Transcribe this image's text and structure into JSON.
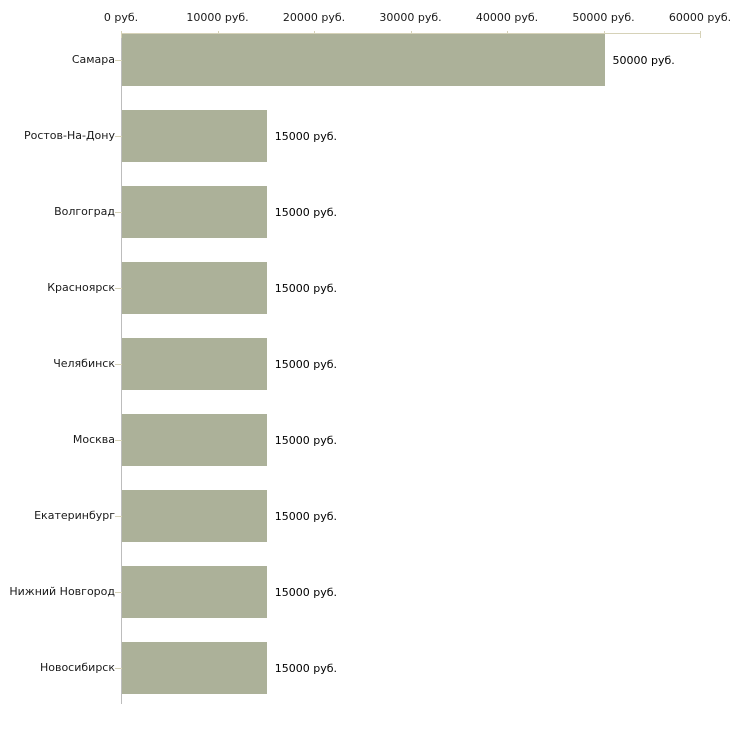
{
  "chart_data": {
    "type": "bar",
    "orientation": "horizontal",
    "title": "",
    "xlabel": "",
    "ylabel": "",
    "unit": "руб.",
    "xlim": [
      0,
      60000
    ],
    "grid": false,
    "legend": "none",
    "categories": [
      "Самара",
      "Ростов-На-Дону",
      "Волгоград",
      "Красноярск",
      "Челябинск",
      "Москва",
      "Екатеринбург",
      "Нижний Новгород",
      "Новосибирск"
    ],
    "values": [
      50000,
      15000,
      15000,
      15000,
      15000,
      15000,
      15000,
      15000,
      15000
    ],
    "value_labels": [
      "50000 руб.",
      "15000 руб.",
      "15000 руб.",
      "15000 руб.",
      "15000 руб.",
      "15000 руб.",
      "15000 руб.",
      "15000 руб.",
      "15000 руб."
    ],
    "tick_labels": [
      "0 руб.",
      "10000 руб.",
      "20000 руб.",
      "30000 руб.",
      "40000 руб.",
      "50000 руб.",
      "60000 руб."
    ],
    "colors": {
      "bar": "#acb199",
      "top_axis": "#d6d2b8",
      "left_axis": "#bdbdbd",
      "text": "#1a1a1a"
    }
  }
}
